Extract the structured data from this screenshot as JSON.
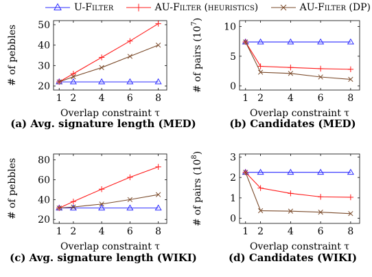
{
  "legend": [
    {
      "name": "U-Filter",
      "color": "#2b2bff",
      "marker": "triangle"
    },
    {
      "name": "AU-Filter (heuristics)",
      "color": "#ff1a1a",
      "marker": "plus"
    },
    {
      "name": "AU-Filter (DP)",
      "color": "#7a4a2a",
      "marker": "x"
    }
  ],
  "chart_data": [
    {
      "id": "a",
      "type": "line",
      "caption": "(a) Avg. signature length (MED)",
      "xlabel": "Overlap constraint τ",
      "ylabel": "# of pebbles",
      "x": [
        1,
        2,
        4,
        6,
        8
      ],
      "xlim": [
        0.6,
        8.6
      ],
      "ylim": [
        18,
        52
      ],
      "yticks": [
        20,
        30,
        40,
        50
      ],
      "series": [
        {
          "name": "U-Filter",
          "values": [
            22,
            22,
            22,
            22,
            22
          ]
        },
        {
          "name": "AU-Filter (heuristics)",
          "values": [
            22,
            26,
            34,
            42,
            50.5
          ]
        },
        {
          "name": "AU-Filter (DP)",
          "values": [
            22,
            24.5,
            29,
            34.5,
            40
          ]
        }
      ]
    },
    {
      "id": "b",
      "type": "line",
      "caption": "(b) Candidates (MED)",
      "xlabel": "Overlap constraint τ",
      "ylabel": "# of pairs (10^7)",
      "ylabel_base": "# of pairs (10",
      "ylabel_exp": "7",
      "ylabel_end": ")",
      "x": [
        1,
        2,
        4,
        6,
        8
      ],
      "xlim": [
        0.6,
        8.6
      ],
      "ylim": [
        -0.7,
        11
      ],
      "yticks": [
        0,
        5,
        10
      ],
      "series": [
        {
          "name": "U-Filter",
          "values": [
            7.4,
            7.4,
            7.4,
            7.4,
            7.4
          ]
        },
        {
          "name": "AU-Filter (heuristics)",
          "values": [
            7.4,
            3.3,
            3.1,
            2.9,
            2.8
          ]
        },
        {
          "name": "AU-Filter (DP)",
          "values": [
            7.4,
            2.3,
            2.1,
            1.5,
            1.1
          ]
        }
      ]
    },
    {
      "id": "c",
      "type": "line",
      "caption": "(c) Avg. signature length (WIKI)",
      "xlabel": "Overlap constraint τ",
      "ylabel": "# of pebbles",
      "x": [
        1,
        2,
        4,
        6,
        8
      ],
      "xlim": [
        0.6,
        8.6
      ],
      "ylim": [
        16,
        86
      ],
      "yticks": [
        20,
        40,
        60,
        80
      ],
      "series": [
        {
          "name": "U-Filter",
          "values": [
            31.5,
            31.5,
            31.5,
            31.5,
            31.5
          ]
        },
        {
          "name": "AU-Filter (heuristics)",
          "values": [
            31.5,
            38,
            50.5,
            62.5,
            73
          ]
        },
        {
          "name": "AU-Filter (DP)",
          "values": [
            31.5,
            32.5,
            35.5,
            40,
            45
          ]
        }
      ]
    },
    {
      "id": "d",
      "type": "line",
      "caption": "(d) Candidates (WIKI)",
      "xlabel": "Overlap constraint τ",
      "ylabel": "# of pairs (10^8)",
      "ylabel_base": "# of pairs (10",
      "ylabel_exp": "8",
      "ylabel_end": ")",
      "x": [
        1,
        2,
        4,
        6,
        8
      ],
      "xlim": [
        0.6,
        8.6
      ],
      "ylim": [
        -0.25,
        3.15
      ],
      "yticks": [
        0,
        1,
        2,
        3
      ],
      "series": [
        {
          "name": "U-Filter",
          "values": [
            2.25,
            2.25,
            2.25,
            2.25,
            2.25
          ]
        },
        {
          "name": "AU-Filter (heuristics)",
          "values": [
            2.25,
            1.48,
            1.22,
            1.05,
            1.03
          ]
        },
        {
          "name": "AU-Filter (DP)",
          "values": [
            2.25,
            0.37,
            0.35,
            0.3,
            0.23
          ]
        }
      ]
    }
  ]
}
